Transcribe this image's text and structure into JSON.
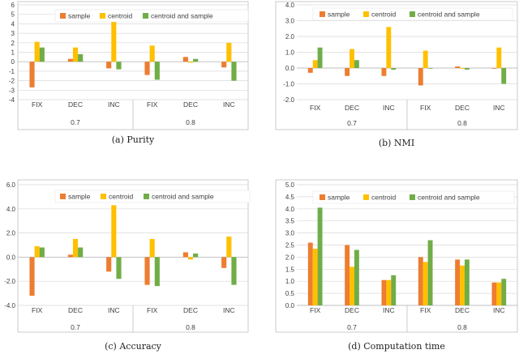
{
  "figure": {
    "legend": [
      "sample",
      "centroid",
      "centroid and sample"
    ]
  },
  "colors": {
    "sample": "#ed7d31",
    "centroid": "#ffc000",
    "centroid and sample": "#70ad47",
    "grid": "#d9d9d9",
    "axis": "#bfbfbf"
  },
  "chart_data": [
    {
      "type": "bar",
      "caption": "(a) Purity",
      "categories": [
        "FIX",
        "DEC",
        "INC",
        "FIX",
        "DEC",
        "INC"
      ],
      "groups": [
        "0.7",
        "0.8"
      ],
      "ylim": [
        -4,
        6
      ],
      "yticks": [
        -4,
        -3,
        -2,
        -1,
        0,
        1,
        2,
        3,
        4,
        5,
        6
      ],
      "ytick_labels": [
        "-4",
        "-3",
        "-2",
        "-1",
        "0",
        "1",
        "2",
        "3",
        "4",
        "5",
        "6"
      ],
      "series": [
        {
          "name": "sample",
          "values": [
            -2.7,
            0.3,
            -0.7,
            -1.4,
            0.5,
            -0.6
          ]
        },
        {
          "name": "centroid",
          "values": [
            2.1,
            1.5,
            4.3,
            1.7,
            -0.1,
            2.0
          ]
        },
        {
          "name": "centroid and sample",
          "values": [
            1.5,
            0.8,
            -0.8,
            -1.9,
            0.3,
            -2.0
          ]
        }
      ]
    },
    {
      "type": "bar",
      "caption": "(b) NMI",
      "categories": [
        "FIX",
        "DEC",
        "INC",
        "FIX",
        "DEC",
        "INC"
      ],
      "groups": [
        "0.7",
        "0.8"
      ],
      "ylim": [
        -2,
        4
      ],
      "yticks": [
        -2,
        -1,
        0,
        1,
        2,
        3,
        4
      ],
      "ytick_labels": [
        "-2.0",
        "-1.0",
        "0.0",
        "1.0",
        "2.0",
        "3.0",
        "4.0"
      ],
      "series": [
        {
          "name": "sample",
          "values": [
            -0.3,
            -0.5,
            -0.5,
            -1.1,
            0.1,
            0.0
          ]
        },
        {
          "name": "centroid",
          "values": [
            0.5,
            1.2,
            2.6,
            1.1,
            0.0,
            1.3
          ]
        },
        {
          "name": "centroid and sample",
          "values": [
            1.3,
            0.5,
            -0.1,
            0.0,
            -0.1,
            -1.0
          ]
        }
      ]
    },
    {
      "type": "bar",
      "caption": "(c) Accuracy",
      "categories": [
        "FIX",
        "DEC",
        "INC",
        "FIX",
        "DEC",
        "INC"
      ],
      "groups": [
        "0.7",
        "0.8"
      ],
      "ylim": [
        -4,
        6
      ],
      "yticks": [
        -4,
        -2,
        0,
        2,
        4,
        6
      ],
      "ytick_labels": [
        "-4.0",
        "-2.0",
        "0.0",
        "2.0",
        "4.0",
        "6.0"
      ],
      "series": [
        {
          "name": "sample",
          "values": [
            -3.2,
            0.2,
            -1.2,
            -2.3,
            0.4,
            -0.9
          ]
        },
        {
          "name": "centroid",
          "values": [
            0.9,
            1.5,
            4.3,
            1.5,
            -0.2,
            1.7
          ]
        },
        {
          "name": "centroid and sample",
          "values": [
            0.8,
            0.8,
            -1.8,
            -2.4,
            0.3,
            -2.3
          ]
        }
      ]
    },
    {
      "type": "bar",
      "caption": "(d) Computation time",
      "categories": [
        "FIX",
        "DEC",
        "INC",
        "FIX",
        "DEC",
        "INC"
      ],
      "groups": [
        "0.7",
        "0.8"
      ],
      "ylim": [
        0,
        5
      ],
      "yticks": [
        0,
        0.5,
        1,
        1.5,
        2,
        2.5,
        3,
        3.5,
        4,
        4.5,
        5
      ],
      "ytick_labels": [
        "0.0",
        "0.5",
        "1.0",
        "1.5",
        "2.0",
        "2.5",
        "3.0",
        "3.5",
        "4.0",
        "4.5",
        "5.0"
      ],
      "series": [
        {
          "name": "sample",
          "values": [
            2.6,
            2.5,
            1.05,
            2.0,
            1.9,
            0.95
          ]
        },
        {
          "name": "centroid",
          "values": [
            2.35,
            1.6,
            1.05,
            1.8,
            1.65,
            0.95
          ]
        },
        {
          "name": "centroid and sample",
          "values": [
            4.05,
            2.3,
            1.25,
            2.7,
            1.9,
            1.1
          ]
        }
      ]
    }
  ]
}
